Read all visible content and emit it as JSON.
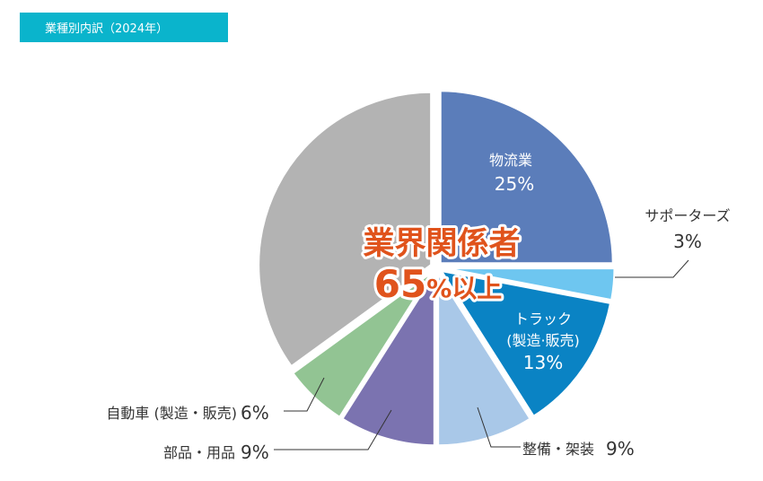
{
  "header": {
    "title": "業種別内訳（2024年）"
  },
  "highlight": {
    "line1": "業界関係者",
    "line2_num": "65",
    "line2_rest": "%以上"
  },
  "chart_data": {
    "type": "pie",
    "title": "業種別内訳（2024年）",
    "start_angle_deg": 0,
    "direction": "clockwise",
    "slices": [
      {
        "label": "物流業",
        "value": 25,
        "value_text": "25%",
        "color": "#5b7dba"
      },
      {
        "label": "サポーターズ",
        "value": 3,
        "value_text": "3%",
        "color": "#6ec6f0"
      },
      {
        "label": "トラック",
        "label2": "(製造·販売)",
        "value": 13,
        "value_text": "13%",
        "color": "#0a83c4"
      },
      {
        "label": "整備・架装",
        "value": 9,
        "value_text": "9%",
        "color": "#a9c8e8"
      },
      {
        "label": "部品・用品",
        "value": 9,
        "value_text": "9%",
        "color": "#7b73b0"
      },
      {
        "label": "自動車 (製造・販売)",
        "value": 6,
        "value_text": "6%",
        "color": "#92c493"
      },
      {
        "label": "",
        "value": 35,
        "value_text": "",
        "color": "#b3b3b3"
      }
    ]
  }
}
